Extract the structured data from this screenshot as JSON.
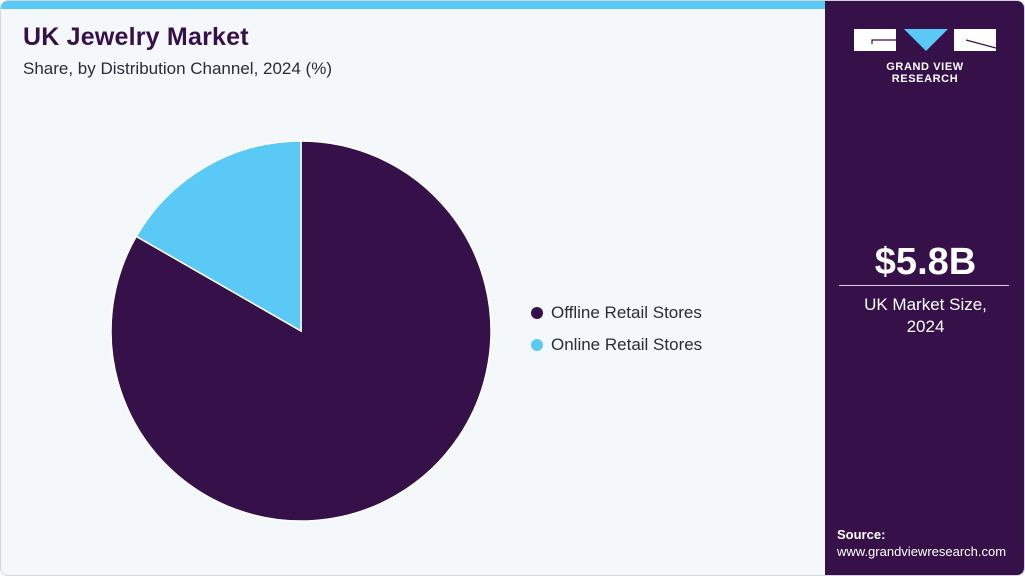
{
  "header": {
    "title": "UK Jewelry Market",
    "subtitle": "Share, by Distribution Channel, 2024 (%)"
  },
  "colors": {
    "offline": "#361049",
    "online": "#5bc9f5",
    "sidebar": "#361049",
    "accent_bar": "#5bc9f5"
  },
  "legend": {
    "items": [
      {
        "label": "Offline Retail Stores",
        "color": "#361049"
      },
      {
        "label": "Online Retail Stores",
        "color": "#5bc9f5"
      }
    ]
  },
  "sidebar": {
    "logo_text": "GRAND VIEW RESEARCH",
    "market_size_value": "$5.8B",
    "market_size_label_line1": "UK Market Size,",
    "market_size_label_line2": "2024",
    "source_label": "Source:",
    "source_url": "www.grandviewresearch.com"
  },
  "chart_data": {
    "type": "pie",
    "title": "UK Jewelry Market",
    "subtitle": "Share, by Distribution Channel, 2024 (%)",
    "categories": [
      "Offline Retail Stores",
      "Online Retail Stores"
    ],
    "values": [
      83.3,
      16.7
    ],
    "colors": [
      "#361049",
      "#5bc9f5"
    ],
    "start_angle_deg": 0,
    "direction": "clockwise from 12 o'clock for offline; online occupies the wedge counter-clockwise from 12 o'clock",
    "legend_position": "right",
    "annotations": [
      "$5.8B UK Market Size, 2024"
    ]
  }
}
